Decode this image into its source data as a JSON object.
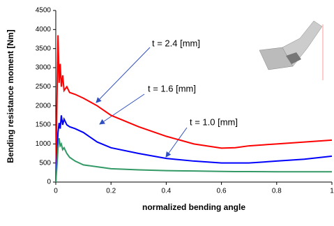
{
  "chart_data": {
    "type": "line",
    "x_label": "normalized bending angle",
    "y_label": "Bending resistance moment  [Nm]",
    "x": [
      0,
      0.005,
      0.008,
      0.012,
      0.016,
      0.02,
      0.025,
      0.03,
      0.04,
      0.05,
      0.07,
      0.1,
      0.15,
      0.2,
      0.3,
      0.4,
      0.5,
      0.6,
      0.65,
      0.7,
      0.8,
      0.9,
      1
    ],
    "series": [
      {
        "color": "#ff0000",
        "values": [
          0,
          2500,
          3850,
          2600,
          3100,
          2500,
          2800,
          2400,
          2500,
          2350,
          2300,
          2200,
          2000,
          1750,
          1450,
          1200,
          1000,
          890,
          900,
          950,
          1000,
          1050,
          1100
        ]
      },
      {
        "color": "#0000ff",
        "values": [
          0,
          800,
          1300,
          1550,
          1400,
          1750,
          1500,
          1650,
          1500,
          1450,
          1400,
          1300,
          1050,
          900,
          750,
          620,
          550,
          500,
          500,
          500,
          550,
          600,
          680
        ]
      },
      {
        "color": "#339966",
        "values": [
          0,
          500,
          900,
          1150,
          950,
          1000,
          850,
          900,
          750,
          650,
          550,
          450,
          400,
          350,
          320,
          300,
          290,
          280,
          275,
          275,
          270,
          270,
          270
        ]
      }
    ],
    "annotations": [
      "t = 2.4 [mm]",
      "t = 1.6 [mm]",
      "t = 1.0 [mm]"
    ],
    "xlim": [
      0,
      1
    ],
    "xticks": [
      0,
      0.2,
      0.4,
      0.6,
      0.8,
      1
    ],
    "ylim": [
      0,
      4500
    ],
    "yticks": [
      0,
      500,
      1000,
      1500,
      2000,
      2500,
      3000,
      3500,
      4000,
      4500
    ]
  }
}
